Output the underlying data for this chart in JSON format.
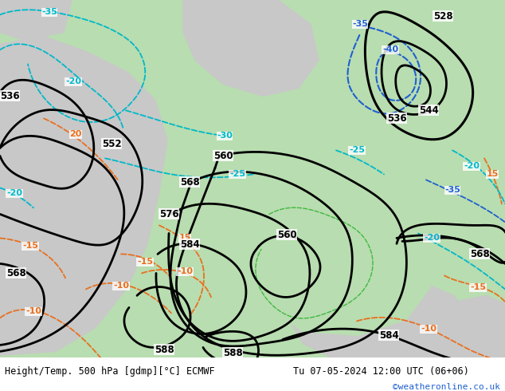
{
  "title_left": "Height/Temp. 500 hPa [gdmp][°C] ECMWF",
  "title_right": "Tu 07-05-2024 12:00 UTC (06+06)",
  "credit": "©weatheronline.co.uk",
  "bg_color_green": "#b8ddb0",
  "bg_color_gray": "#c8c8c8",
  "bg_color_white": "#ffffff",
  "height_contour_color": "#000000",
  "temp_orange_color": "#e87020",
  "temp_cyan_color": "#00b8c8",
  "temp_blue_color": "#2060d0",
  "temp_green_color": "#40b840",
  "figsize": [
    6.34,
    4.9
  ],
  "dpi": 100
}
